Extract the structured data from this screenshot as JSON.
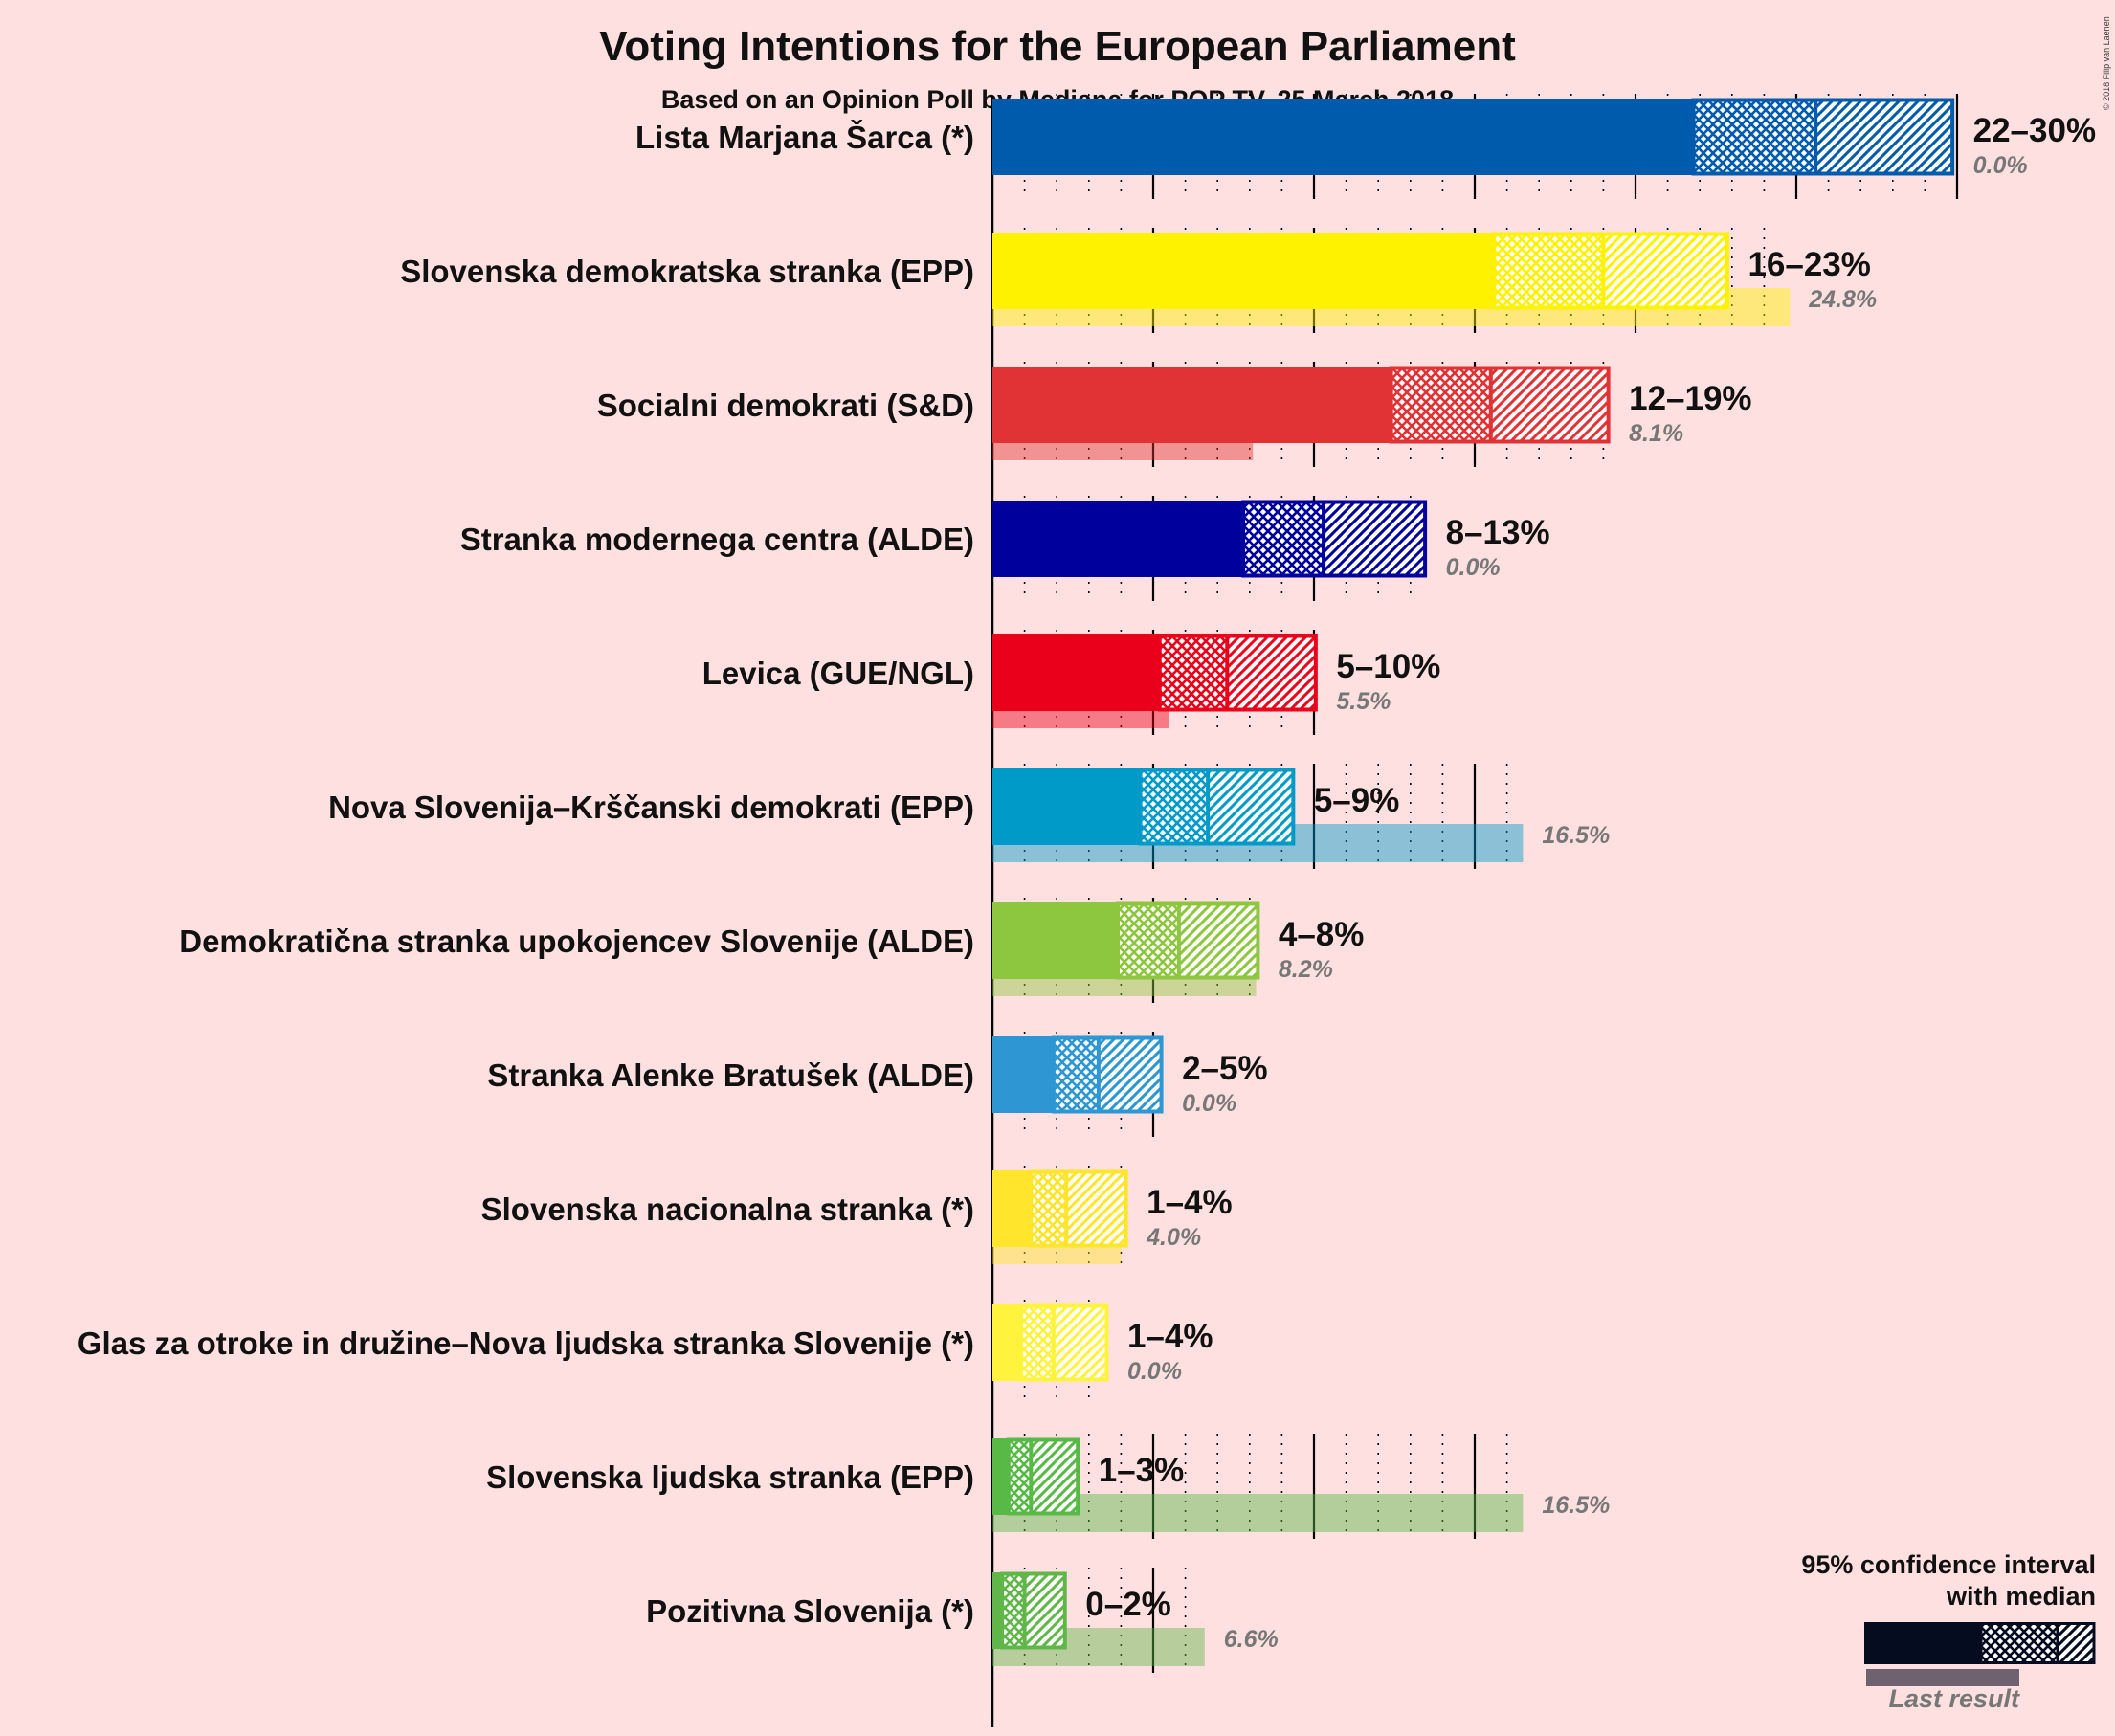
{
  "chart_data": {
    "type": "bar",
    "title": "Voting Intentions for the European Parliament",
    "subtitle": "Based on an Opinion Poll by Mediana for POP TV, 25 March 2018",
    "copyright": "© 2018 Filip van Laenen",
    "xlim": [
      0,
      31
    ],
    "major_ticks": [
      0,
      5,
      10,
      15,
      20,
      25,
      30
    ],
    "minor_tick_step": 1,
    "parties": [
      {
        "name": "Lista Marjana Šarca (*)",
        "color": "#005BAC",
        "ci_low": 21.8,
        "median": 25.6,
        "ci_high": 29.9,
        "range_label": "22–30%",
        "last_result": 0.0,
        "last_label": "0.0%"
      },
      {
        "name": "Slovenska demokratska stranka (EPP)",
        "color": "#FFF200",
        "ci_low": 15.6,
        "median": 19.0,
        "ci_high": 22.9,
        "range_label": "16–23%",
        "last_result": 24.8,
        "last_label": "24.8%"
      },
      {
        "name": "Socialni demokrati (S&D)",
        "color": "#E13236",
        "ci_low": 12.4,
        "median": 15.5,
        "ci_high": 19.2,
        "range_label": "12–19%",
        "last_result": 8.1,
        "last_label": "8.1%"
      },
      {
        "name": "Stranka modernega centra (ALDE)",
        "color": "#00009C",
        "ci_low": 7.8,
        "median": 10.3,
        "ci_high": 13.5,
        "range_label": "8–13%",
        "last_result": 0.0,
        "last_label": "0.0%"
      },
      {
        "name": "Levica (GUE/NGL)",
        "color": "#EB001B",
        "ci_low": 5.2,
        "median": 7.3,
        "ci_high": 10.1,
        "range_label": "5–10%",
        "last_result": 5.5,
        "last_label": "5.5%"
      },
      {
        "name": "Nova Slovenija–Krščanski demokrati (EPP)",
        "color": "#009AC9",
        "ci_low": 4.6,
        "median": 6.7,
        "ci_high": 9.4,
        "range_label": "5–9%",
        "last_result": 16.5,
        "last_label": "16.5%"
      },
      {
        "name": "Demokratična stranka upokojencev Slovenije (ALDE)",
        "color": "#8DC63F",
        "ci_low": 3.9,
        "median": 5.8,
        "ci_high": 8.3,
        "range_label": "4–8%",
        "last_result": 8.2,
        "last_label": "8.2%"
      },
      {
        "name": "Stranka Alenke Bratušek (ALDE)",
        "color": "#2E96D2",
        "ci_low": 1.9,
        "median": 3.3,
        "ci_high": 5.3,
        "range_label": "2–5%",
        "last_result": 0.0,
        "last_label": "0.0%"
      },
      {
        "name": "Slovenska nacionalna stranka (*)",
        "color": "#FFE52B",
        "ci_low": 1.2,
        "median": 2.3,
        "ci_high": 4.2,
        "range_label": "1–4%",
        "last_result": 4.0,
        "last_label": "4.0%"
      },
      {
        "name": "Glas za otroke in družine–Nova ljudska stranka Slovenije (*)",
        "color": "#FFF33E",
        "ci_low": 0.9,
        "median": 1.9,
        "ci_high": 3.6,
        "range_label": "1–4%",
        "last_result": 0.0,
        "last_label": "0.0%"
      },
      {
        "name": "Slovenska ljudska stranka (EPP)",
        "color": "#58B947",
        "ci_low": 0.5,
        "median": 1.2,
        "ci_high": 2.7,
        "range_label": "1–3%",
        "last_result": 16.5,
        "last_label": "16.5%"
      },
      {
        "name": "Pozitivna Slovenija (*)",
        "color": "#60B649",
        "ci_low": 0.3,
        "median": 1.0,
        "ci_high": 2.3,
        "range_label": "0–2%",
        "last_result": 6.6,
        "last_label": "6.6%"
      }
    ],
    "legend": {
      "line1": "95% confidence interval",
      "line2": "with median",
      "last_result": "Last result",
      "color": "#050C20"
    }
  }
}
